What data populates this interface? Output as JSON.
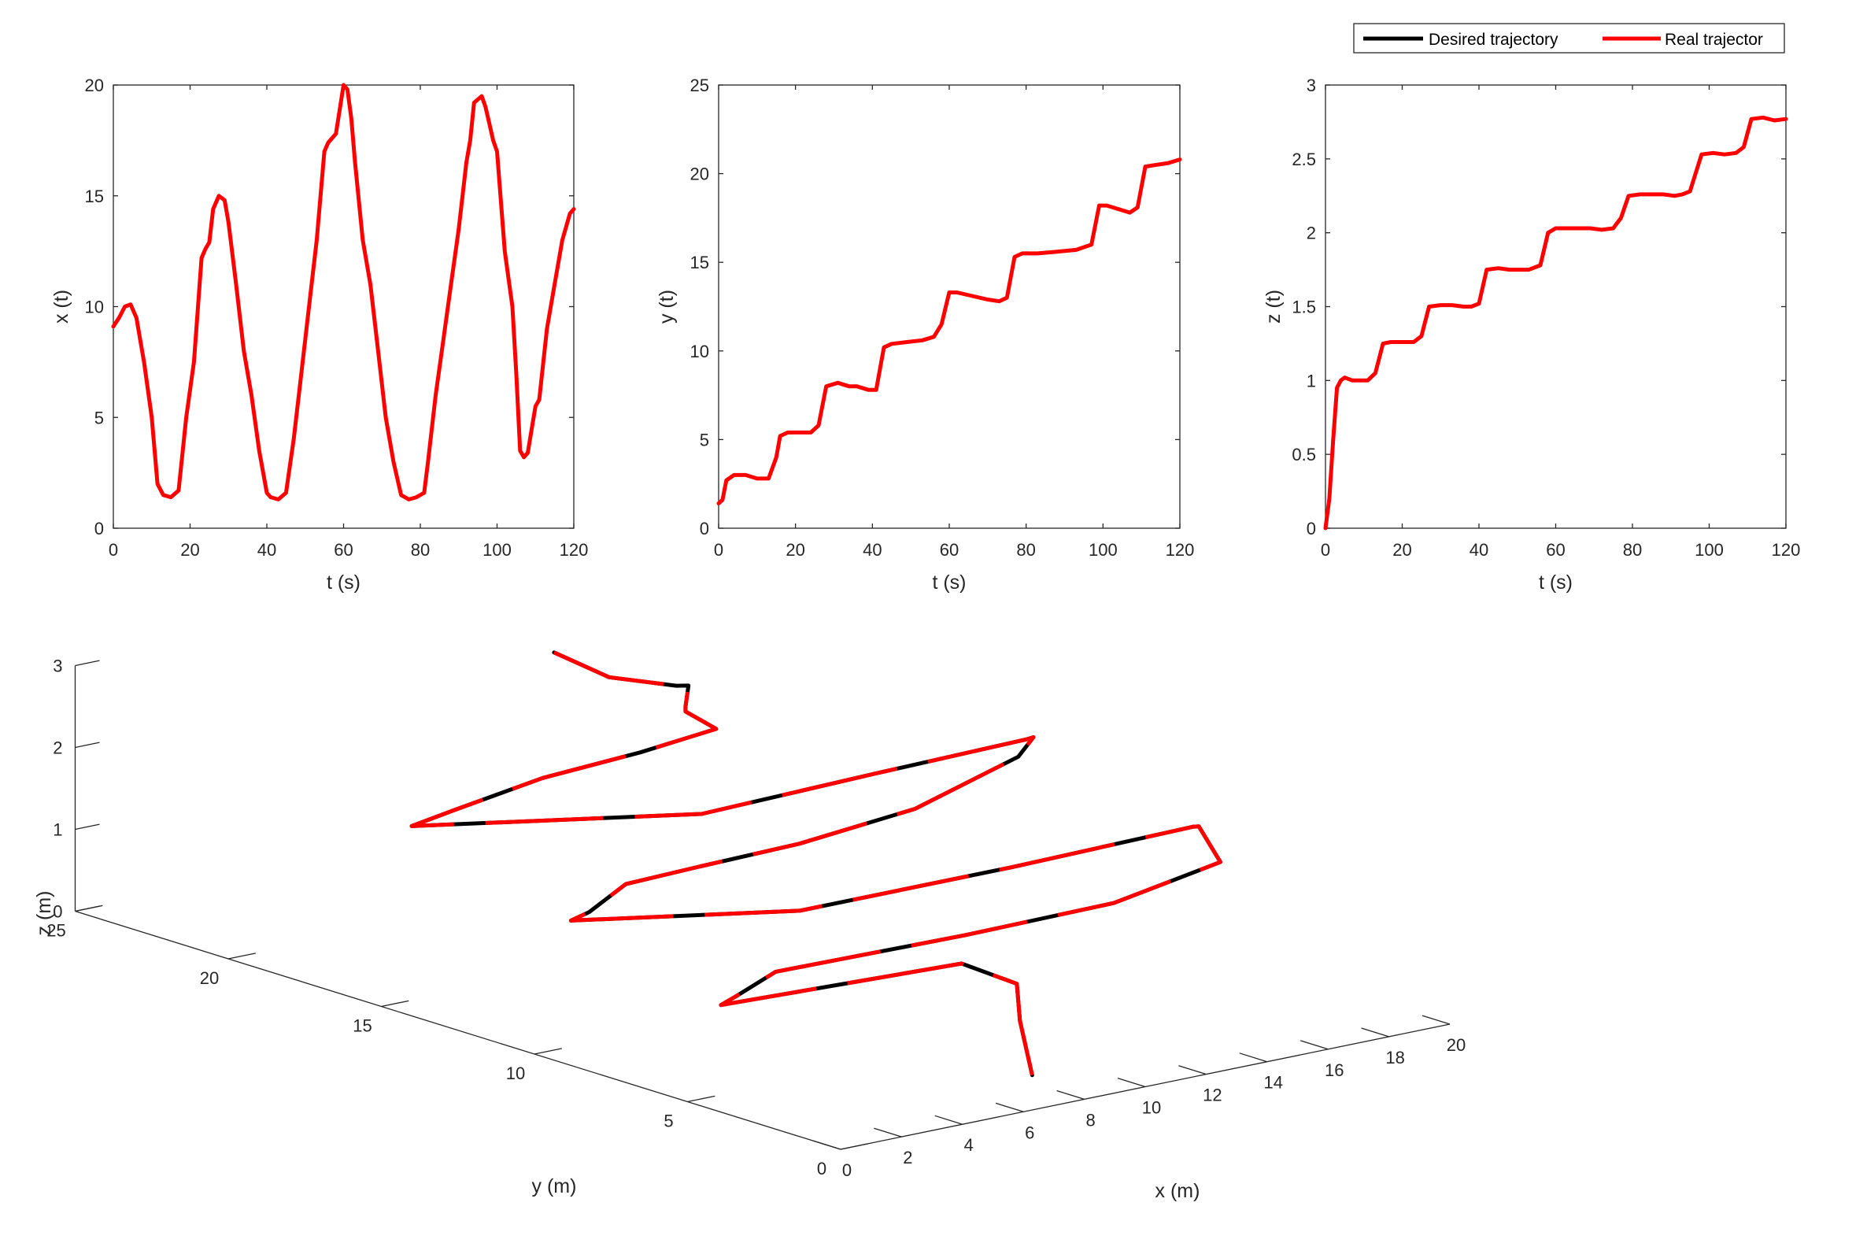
{
  "colors": {
    "desired": "#000000",
    "real": "#ff0000",
    "axis": "#262626"
  },
  "legend": {
    "entries": [
      {
        "label": "Desired trajectory",
        "color": "#000000"
      },
      {
        "label": "Real trajector",
        "color": "#ff0000"
      }
    ],
    "placement": "top-right"
  },
  "chart_data": [
    {
      "type": "line",
      "xlabel": "t (s)",
      "ylabel": "x (t)",
      "xlim": [
        0,
        120
      ],
      "ylim": [
        0,
        20
      ],
      "xticks": [
        0,
        20,
        40,
        60,
        80,
        100,
        120
      ],
      "yticks": [
        0,
        5,
        10,
        15,
        20
      ],
      "grid": false,
      "series": [
        {
          "x": [
            0,
            1.5,
            3,
            4.5,
            6,
            8,
            10,
            11.5,
            13,
            15,
            17,
            19,
            21,
            23,
            24,
            25,
            26,
            27.5,
            29,
            30,
            32,
            34,
            36,
            38,
            40,
            41,
            43,
            45,
            47,
            49,
            51,
            53,
            55,
            56,
            58,
            60,
            61,
            62,
            63,
            65,
            67,
            69,
            71,
            73,
            75,
            77,
            79,
            81,
            82,
            84,
            86,
            88,
            90,
            92,
            93,
            94,
            96,
            97,
            99,
            100,
            102,
            104,
            105,
            106,
            107,
            108,
            110,
            111,
            113,
            115,
            117,
            119,
            120
          ],
          "y": [
            9.1,
            9.5,
            10.0,
            10.1,
            9.5,
            7.5,
            5.0,
            2.0,
            1.5,
            1.4,
            1.7,
            5.0,
            7.5,
            12.2,
            12.6,
            12.9,
            14.4,
            15.0,
            14.8,
            13.8,
            11.0,
            8.0,
            6.0,
            3.5,
            1.6,
            1.4,
            1.3,
            1.6,
            4.0,
            7.0,
            10.0,
            13.0,
            17.0,
            17.4,
            17.8,
            20.0,
            19.8,
            18.5,
            16.5,
            13.0,
            11.0,
            8.0,
            5.0,
            3.0,
            1.5,
            1.3,
            1.4,
            1.6,
            3.0,
            6.0,
            8.5,
            11.0,
            13.5,
            16.5,
            17.5,
            19.2,
            19.5,
            19.0,
            17.5,
            17.0,
            12.5,
            10.0,
            7.0,
            3.5,
            3.2,
            3.4,
            5.5,
            5.8,
            9.0,
            11.0,
            13.0,
            14.2,
            14.4
          ]
        }
      ]
    },
    {
      "type": "line",
      "xlabel": "t (s)",
      "ylabel": "y (t)",
      "xlim": [
        0,
        120
      ],
      "ylim": [
        0,
        25
      ],
      "xticks": [
        0,
        20,
        40,
        60,
        80,
        100,
        120
      ],
      "yticks": [
        0,
        5,
        10,
        15,
        20,
        25
      ],
      "grid": false,
      "series": [
        {
          "x": [
            0,
            1,
            2,
            4,
            7,
            10,
            13,
            15,
            16,
            18,
            21,
            24,
            26,
            28,
            31,
            34,
            36,
            39,
            41,
            43,
            45,
            49,
            53,
            56,
            58,
            60,
            62,
            66,
            70,
            73,
            75,
            77,
            79,
            83,
            88,
            93,
            97,
            99,
            101,
            104,
            107,
            109,
            111,
            114,
            117,
            120
          ],
          "y": [
            1.4,
            1.6,
            2.7,
            3.0,
            3.0,
            2.8,
            2.8,
            4.0,
            5.2,
            5.4,
            5.4,
            5.4,
            5.8,
            8.0,
            8.2,
            8.0,
            8.0,
            7.8,
            7.8,
            10.2,
            10.4,
            10.5,
            10.6,
            10.8,
            11.5,
            13.3,
            13.3,
            13.1,
            12.9,
            12.8,
            13.0,
            15.3,
            15.5,
            15.5,
            15.6,
            15.7,
            16.0,
            18.2,
            18.2,
            18.0,
            17.8,
            18.1,
            20.4,
            20.5,
            20.6,
            20.8
          ]
        }
      ]
    },
    {
      "type": "line",
      "xlabel": "t (s)",
      "ylabel": "z (t)",
      "xlim": [
        0,
        120
      ],
      "ylim": [
        0,
        3
      ],
      "xticks": [
        0,
        20,
        40,
        60,
        80,
        100,
        120
      ],
      "yticks": [
        0,
        0.5,
        1,
        1.5,
        2,
        2.5,
        3
      ],
      "grid": false,
      "series": [
        {
          "x": [
            0,
            1,
            2,
            3,
            4,
            5,
            7,
            9,
            11,
            13,
            15,
            17,
            20,
            23,
            25,
            27,
            30,
            33,
            36,
            38,
            40,
            42,
            45,
            48,
            50,
            53,
            56,
            58,
            60,
            63,
            66,
            69,
            72,
            75,
            77,
            79,
            82,
            85,
            88,
            91,
            93,
            95,
            98,
            101,
            104,
            107,
            109,
            111,
            114,
            117,
            120
          ],
          "y": [
            0,
            0.2,
            0.6,
            0.95,
            1.0,
            1.02,
            1.0,
            1.0,
            1.0,
            1.05,
            1.25,
            1.26,
            1.26,
            1.26,
            1.3,
            1.5,
            1.51,
            1.51,
            1.5,
            1.5,
            1.52,
            1.75,
            1.76,
            1.75,
            1.75,
            1.75,
            1.78,
            2.0,
            2.03,
            2.03,
            2.03,
            2.03,
            2.02,
            2.03,
            2.1,
            2.25,
            2.26,
            2.26,
            2.26,
            2.25,
            2.26,
            2.28,
            2.53,
            2.54,
            2.53,
            2.54,
            2.58,
            2.77,
            2.78,
            2.76,
            2.77
          ]
        }
      ]
    },
    {
      "type": "line",
      "xlabel": "x (m)",
      "ylabel": "y (m)",
      "zlabel": "z (m)",
      "xlim": [
        0,
        20
      ],
      "ylim": [
        0,
        25
      ],
      "zlim": [
        0,
        3
      ],
      "xticks": [
        0,
        2,
        4,
        6,
        8,
        10,
        12,
        14,
        16,
        18,
        20
      ],
      "yticks": [
        0,
        5,
        10,
        15,
        20,
        25
      ],
      "zticks": [
        0,
        1,
        2,
        3
      ],
      "grid": false,
      "series": [
        {
          "name": "Real trajector",
          "x": [
            8.5,
            8.6,
            8.8,
            9.0,
            1.6,
            2.2,
            3.5,
            5.5,
            9.5,
            14.5,
            19.0,
            19.8,
            19.6,
            13.5,
            6.5,
            1.4,
            2.2,
            3.5,
            6.0,
            9.5,
            14.0,
            19.2,
            19.6,
            19.2,
            14.0,
            8.0,
            1.5,
            3.0,
            6.0,
            9.5,
            12.5,
            13.0,
            13.2,
            13.3,
            13.0,
            12.0,
            11.5
          ],
          "y": [
            2.2,
            2.7,
            3.0,
            5.0,
            5.5,
            5.6,
            5.6,
            5.5,
            5.4,
            5.5,
            6.5,
            8.0,
            8.0,
            7.8,
            7.8,
            10.2,
            10.4,
            10.5,
            10.6,
            10.8,
            11.5,
            13.3,
            13.2,
            13.0,
            12.8,
            12.5,
            15.5,
            15.6,
            15.7,
            16.0,
            16.5,
            18.0,
            18.2,
            18.2,
            18.3,
            19.5,
            20.8
          ],
          "z": [
            0,
            0.6,
            1.0,
            1.0,
            1.0,
            1.05,
            1.25,
            1.26,
            1.26,
            1.26,
            1.3,
            1.5,
            1.51,
            1.51,
            1.51,
            1.5,
            1.52,
            1.75,
            1.76,
            1.75,
            1.75,
            1.78,
            2.0,
            2.03,
            2.03,
            2.03,
            2.03,
            2.1,
            2.25,
            2.26,
            2.26,
            2.26,
            2.28,
            2.53,
            2.54,
            2.58,
            2.77
          ]
        }
      ]
    }
  ]
}
